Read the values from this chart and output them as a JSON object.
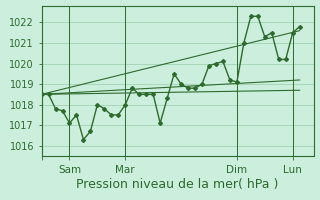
{
  "xlabel": "Pression niveau de la mer( hPa )",
  "bg_color": "#cceedd",
  "line_color": "#2d6a2d",
  "grid_color": "#99ccaa",
  "label_color": "#2d6a2d",
  "ylim": [
    1015.5,
    1022.8
  ],
  "yticks": [
    1016,
    1017,
    1018,
    1019,
    1020,
    1021,
    1022
  ],
  "x_tick_positions": [
    0,
    12,
    36,
    84,
    108
  ],
  "x_tick_labels": [
    "",
    "Sam",
    "Mar",
    "Dim",
    "Lun"
  ],
  "data_x": [
    0,
    3,
    6,
    9,
    12,
    15,
    18,
    21,
    24,
    27,
    30,
    33,
    36,
    39,
    42,
    45,
    48,
    51,
    54,
    57,
    60,
    63,
    66,
    69,
    72,
    75,
    78,
    81,
    84,
    87,
    90,
    93,
    96,
    99,
    102,
    105,
    108,
    111
  ],
  "data_y": [
    1018.5,
    1018.5,
    1017.8,
    1017.7,
    1017.1,
    1017.5,
    1016.3,
    1016.7,
    1018.0,
    1017.8,
    1017.5,
    1017.5,
    1018.0,
    1018.8,
    1018.5,
    1018.5,
    1018.5,
    1017.1,
    1018.3,
    1019.5,
    1019.0,
    1018.8,
    1018.8,
    1019.0,
    1019.9,
    1020.0,
    1020.1,
    1019.2,
    1019.1,
    1021.0,
    1022.3,
    1022.3,
    1021.3,
    1021.5,
    1020.2,
    1020.2,
    1021.5,
    1021.8
  ],
  "trend_lines": [
    {
      "x": [
        0,
        111
      ],
      "y": [
        1018.5,
        1021.6
      ]
    },
    {
      "x": [
        0,
        111
      ],
      "y": [
        1018.5,
        1019.2
      ]
    },
    {
      "x": [
        0,
        111
      ],
      "y": [
        1018.5,
        1018.7
      ]
    }
  ],
  "vline_positions": [
    12,
    36,
    84,
    108
  ],
  "xlim": [
    0,
    117
  ],
  "fontsize_xlabel": 9,
  "fontsize_yticks": 7,
  "fontsize_xticks": 7.5
}
